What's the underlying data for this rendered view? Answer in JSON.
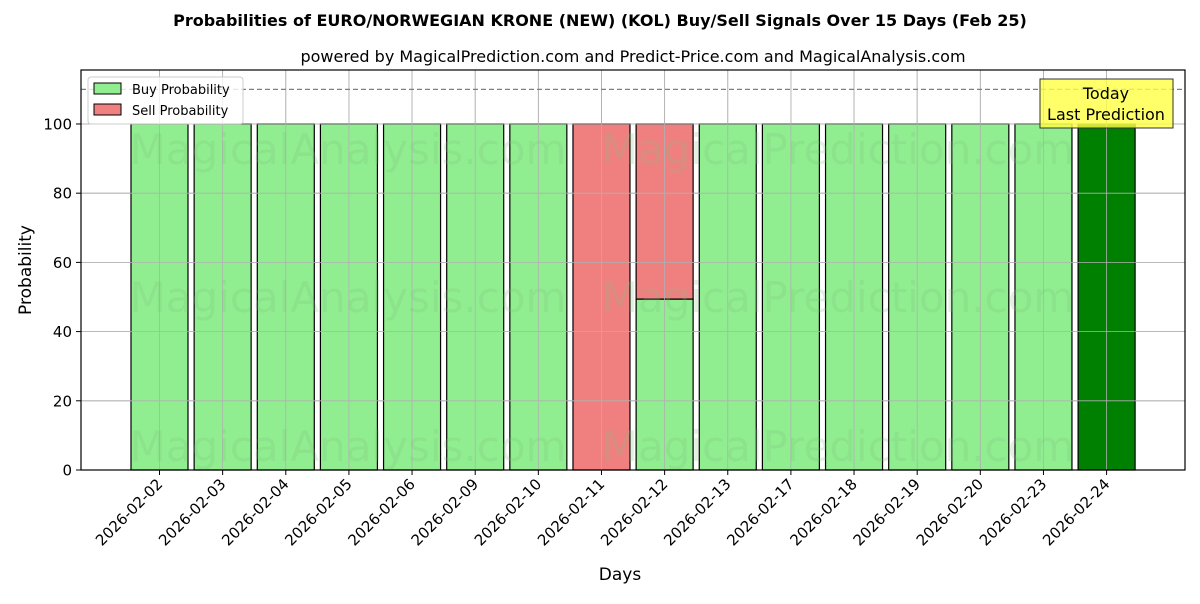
{
  "chart_data": {
    "type": "bar",
    "stacked": true,
    "title": "Probabilities of EURO/NORWEGIAN KRONE (NEW) (KOL) Buy/Sell Signals Over 15 Days (Feb 25)",
    "subtitle": "powered by MagicalPrediction.com and Predict-Price.com and MagicalAnalysis.com",
    "xlabel": "Days",
    "ylabel": "Probability",
    "ylim": [
      0,
      115.6
    ],
    "yticks": [
      0,
      20,
      40,
      60,
      80,
      100
    ],
    "grid": true,
    "legend_position": "upper left",
    "categories": [
      "2026-02-02",
      "2026-02-03",
      "2026-02-04",
      "2026-02-05",
      "2026-02-06",
      "2026-02-09",
      "2026-02-10",
      "2026-02-11",
      "2026-02-12",
      "2026-02-13",
      "2026-02-17",
      "2026-02-18",
      "2026-02-19",
      "2026-02-20",
      "2026-02-23",
      "2026-02-24"
    ],
    "series": [
      {
        "name": "Buy Probability",
        "color": "#90ee90",
        "values": [
          100,
          100,
          100,
          100,
          100,
          100,
          100,
          0,
          49.4,
          100,
          100,
          100,
          100,
          100,
          100,
          100
        ]
      },
      {
        "name": "Sell Probability",
        "color": "#f08080",
        "values": [
          0,
          0,
          0,
          0,
          0,
          0,
          0,
          100,
          50.6,
          0,
          0,
          0,
          0,
          0,
          0,
          0
        ]
      }
    ],
    "highlight": {
      "index": 15,
      "color": "#008000"
    },
    "reference_line": {
      "y": 110,
      "style": "dashed",
      "color": "#808080"
    },
    "annotation": {
      "line1": "Today",
      "line2": "Last Prediction",
      "background": "#ffff44"
    },
    "watermarks": [
      "MagicalAnalysis.com",
      "MagicalPrediction.com"
    ]
  }
}
